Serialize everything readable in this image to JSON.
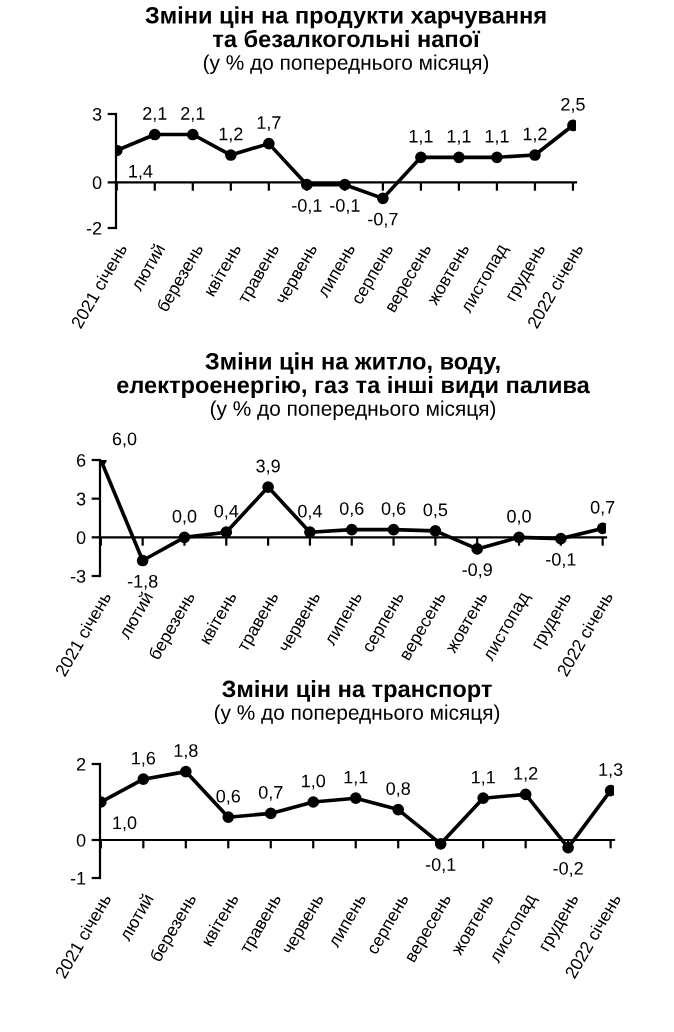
{
  "chart_data": [
    {
      "type": "line",
      "title": "Зміни цін на продукти харчування\nта безалкогольні напої",
      "subtitle": "(у % до попереднього місяця)",
      "categories": [
        "2021 січень",
        "лютий",
        "березень",
        "квітень",
        "травень",
        "червень",
        "липень",
        "серпень",
        "вересень",
        "жовтень",
        "листопад",
        "грудень",
        "2022 січень"
      ],
      "values": [
        1.4,
        2.1,
        2.1,
        1.2,
        1.7,
        -0.1,
        -0.1,
        -0.7,
        1.1,
        1.1,
        1.1,
        1.2,
        2.5
      ],
      "value_labels": [
        "1,4",
        "2,1",
        "2,1",
        "1,2",
        "1,7",
        "-0,1",
        "-0,1",
        "-0,7",
        "1,1",
        "1,1",
        "1,1",
        "1,2",
        "2,5"
      ],
      "color": "#000000",
      "marker": "circle",
      "line_style": "solid",
      "ylim": [
        -2,
        3
      ],
      "yticks": [
        -2,
        0,
        3
      ]
    },
    {
      "type": "line",
      "title": "Зміни цін на житло, воду,\nелектроенергію, газ та інші види палива",
      "subtitle": "(у % до попереднього місяця)",
      "categories": [
        "2021 січень",
        "лютий",
        "березень",
        "квітень",
        "травень",
        "червень",
        "липень",
        "серпень",
        "вересень",
        "жовтень",
        "листопад",
        "грудень",
        "2022 січень"
      ],
      "values": [
        6.0,
        -1.8,
        0.0,
        0.4,
        3.9,
        0.4,
        0.6,
        0.6,
        0.5,
        -0.9,
        0.0,
        -0.1,
        0.7
      ],
      "value_labels": [
        "6,0",
        "-1,8",
        "0,0",
        "0,4",
        "3,9",
        "0,4",
        "0,6",
        "0,6",
        "0,5",
        "-0,9",
        "0,0",
        "-0,1",
        "0,7"
      ],
      "color": "#000000",
      "marker": "circle",
      "line_style": "solid",
      "ylim": [
        -3,
        6
      ],
      "yticks": [
        -3,
        0,
        3,
        6
      ]
    },
    {
      "type": "line",
      "title": "Зміни цін на транспорт",
      "subtitle": "(у % до попереднього місяця)",
      "categories": [
        "2021 січень",
        "лютий",
        "березень",
        "квітень",
        "травень",
        "червень",
        "липень",
        "серпень",
        "вересень",
        "жовтень",
        "листопад",
        "грудень",
        "2022 січень"
      ],
      "values": [
        1.0,
        1.6,
        1.8,
        0.6,
        0.7,
        1.0,
        1.1,
        0.8,
        -0.1,
        1.1,
        1.2,
        -0.2,
        1.3
      ],
      "value_labels": [
        "1,0",
        "1,6",
        "1,8",
        "0,6",
        "0,7",
        "1,0",
        "1,1",
        "0,8",
        "-0,1",
        "1,1",
        "1,2",
        "-0,2",
        "1,3"
      ],
      "color": "#000000",
      "marker": "circle",
      "line_style": "solid",
      "ylim": [
        -1,
        2
      ],
      "yticks": [
        -1,
        0,
        2
      ]
    }
  ]
}
